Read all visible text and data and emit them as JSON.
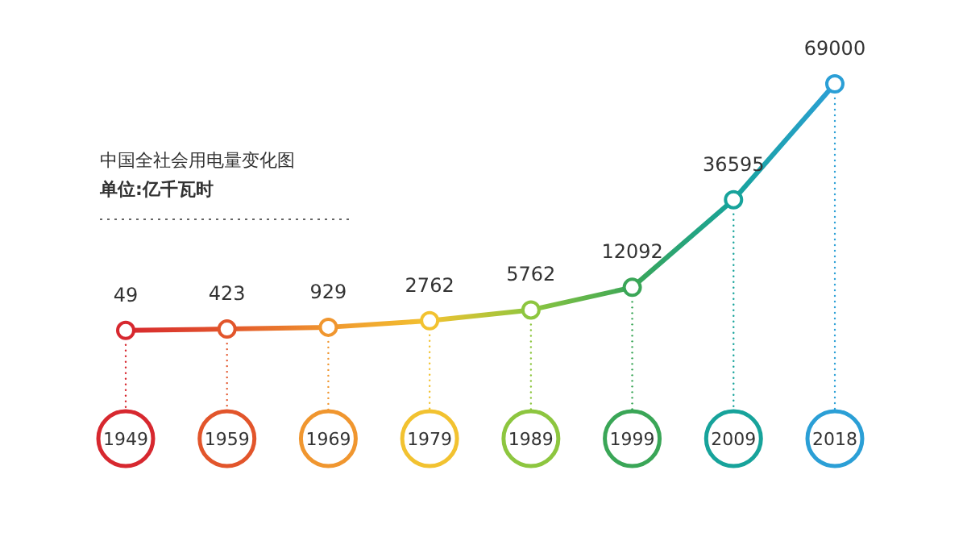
{
  "chart_data": {
    "type": "line",
    "title": "中国全社会用电量变化图",
    "subtitle": "单位:亿千瓦时",
    "categories": [
      "1949",
      "1959",
      "1969",
      "1979",
      "1989",
      "1999",
      "2009",
      "2018"
    ],
    "values": [
      49,
      423,
      929,
      2762,
      5762,
      12092,
      36595,
      69000
    ],
    "colors": [
      "#d7282f",
      "#e2552b",
      "#f0962f",
      "#f2c230",
      "#8dc63f",
      "#3aa657",
      "#17a39b",
      "#2b9fd6"
    ],
    "data_labels": true,
    "marker": "circle"
  }
}
